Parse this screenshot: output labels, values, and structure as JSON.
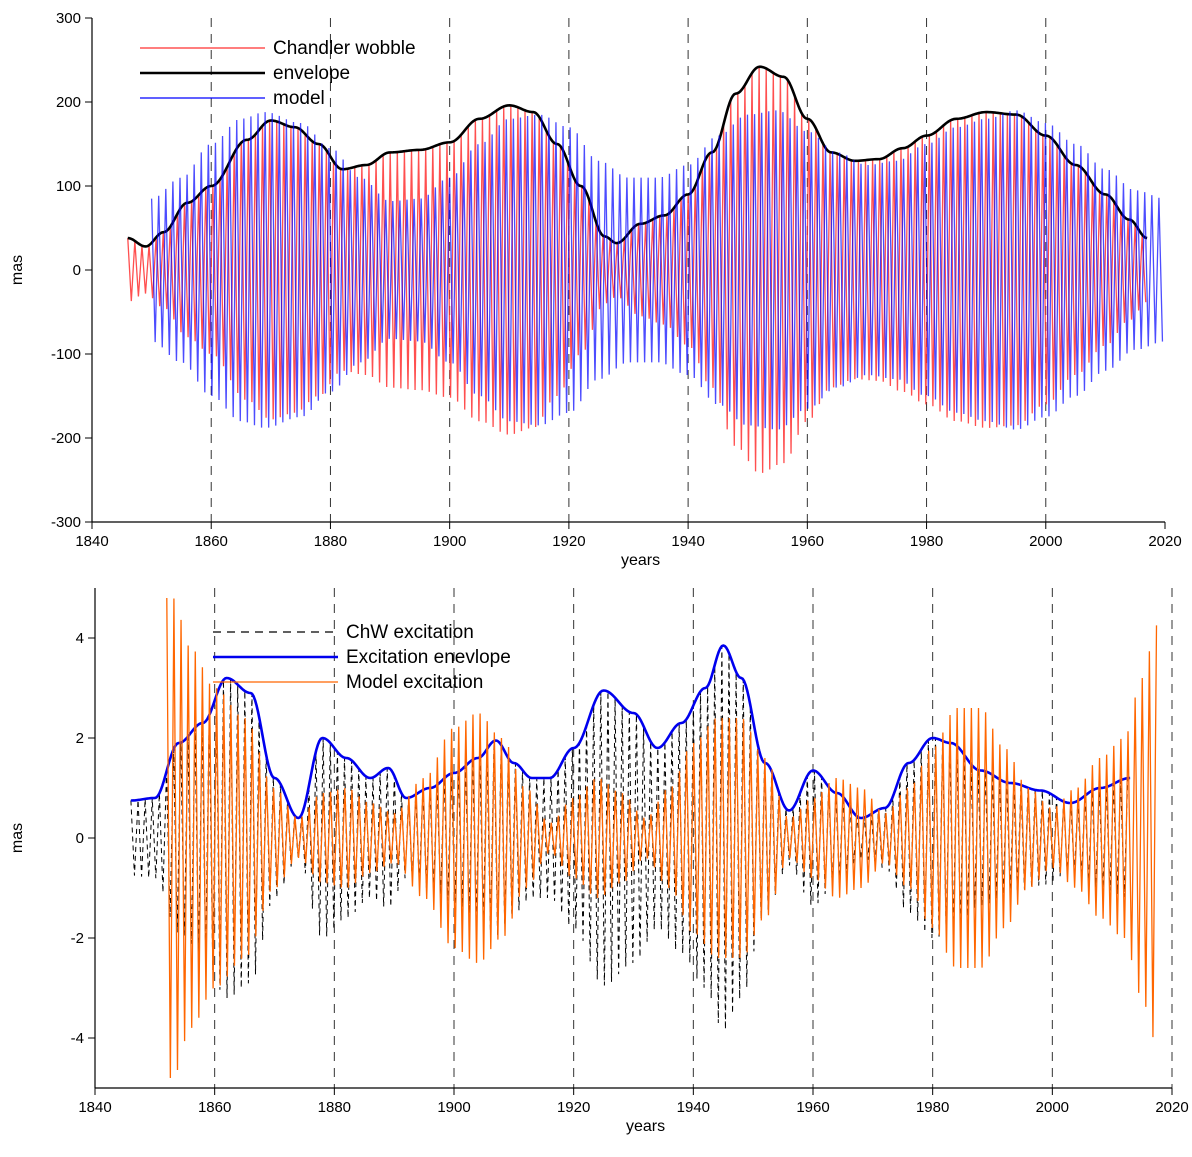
{
  "chart_data": [
    {
      "type": "line",
      "xlabel": "years",
      "ylabel": "mas",
      "xlim": [
        1840,
        2020
      ],
      "ylim": [
        -300,
        300
      ],
      "x_ticks": [
        1840,
        1860,
        1880,
        1900,
        1920,
        1940,
        1960,
        1980,
        2000,
        2020
      ],
      "y_ticks": [
        -300,
        -200,
        -100,
        0,
        100,
        200,
        300
      ],
      "vertical_dashed_gridlines_at": [
        1860,
        1880,
        1900,
        1920,
        1940,
        1960,
        1980,
        2000
      ],
      "legend_position": "top-left",
      "series": [
        {
          "name": "Chandler wobble",
          "color": "#ff3030",
          "style": "oscillation",
          "period_years": 1.19,
          "x_range": [
            1846,
            2017
          ],
          "amplitude": {
            "x": [
              1846,
              1849,
              1852,
              1856,
              1860,
              1866,
              1870,
              1874,
              1878,
              1882,
              1886,
              1890,
              1895,
              1900,
              1905,
              1910,
              1914,
              1918,
              1922,
              1926,
              1928,
              1932,
              1936,
              1940,
              1944,
              1948,
              1952,
              1956,
              1960,
              1964,
              1968,
              1972,
              1976,
              1980,
              1985,
              1990,
              1995,
              2000,
              2005,
              2010,
              2014,
              2017
            ],
            "y": [
              38,
              28,
              45,
              80,
              100,
              155,
              178,
              170,
              150,
              120,
              125,
              140,
              143,
              152,
              180,
              196,
              188,
              150,
              100,
              40,
              32,
              55,
              65,
              90,
              140,
              210,
              242,
              230,
              180,
              140,
              130,
              132,
              145,
              160,
              180,
              188,
              185,
              160,
              125,
              90,
              60,
              38
            ]
          }
        },
        {
          "name": "envelope",
          "color": "#000000",
          "style": "line",
          "x": [
            1846,
            1849,
            1852,
            1856,
            1860,
            1866,
            1870,
            1874,
            1878,
            1882,
            1886,
            1890,
            1895,
            1900,
            1905,
            1910,
            1914,
            1918,
            1922,
            1926,
            1928,
            1932,
            1936,
            1940,
            1944,
            1948,
            1952,
            1956,
            1960,
            1964,
            1968,
            1972,
            1976,
            1980,
            1985,
            1990,
            1995,
            2000,
            2005,
            2010,
            2014,
            2017
          ],
          "y": [
            38,
            28,
            45,
            80,
            100,
            155,
            178,
            170,
            150,
            120,
            125,
            140,
            143,
            152,
            180,
            196,
            188,
            150,
            100,
            40,
            32,
            55,
            65,
            90,
            140,
            210,
            242,
            230,
            180,
            140,
            130,
            132,
            145,
            160,
            180,
            188,
            185,
            160,
            125,
            90,
            60,
            38
          ]
        },
        {
          "name": "model",
          "color": "#0000ff",
          "style": "oscillation",
          "period_years": 1.19,
          "x_range": [
            1850,
            2020
          ],
          "amplitude": {
            "x": [
              1850,
              1855,
              1860,
              1865,
              1869,
              1875,
              1880,
              1885,
              1890,
              1895,
              1900,
              1905,
              1910,
              1915,
              1920,
              1925,
              1930,
              1935,
              1940,
              1945,
              1950,
              1955,
              1960,
              1965,
              1970,
              1975,
              1980,
              1985,
              1990,
              1995,
              2000,
              2005,
              2010,
              2015,
              2020
            ],
            "y": [
              85,
              110,
              150,
              180,
              188,
              175,
              145,
              110,
              82,
              85,
              110,
              150,
              180,
              185,
              170,
              130,
              110,
              110,
              125,
              160,
              185,
              190,
              165,
              140,
              125,
              130,
              150,
              170,
              180,
              190,
              175,
              150,
              120,
              95,
              85
            ]
          }
        }
      ]
    },
    {
      "type": "line",
      "xlabel": "years",
      "ylabel": "mas",
      "xlim": [
        1840,
        2020
      ],
      "ylim": [
        -5,
        5
      ],
      "x_ticks": [
        1840,
        1860,
        1880,
        1900,
        1920,
        1940,
        1960,
        1980,
        2000,
        2020
      ],
      "y_ticks": [
        -4,
        -2,
        0,
        2,
        4
      ],
      "vertical_dashed_gridlines_at": [
        1840,
        1860,
        1880,
        1900,
        1920,
        1940,
        1960,
        1980,
        2000,
        2020
      ],
      "legend_position": "top-left",
      "series": [
        {
          "name": "ChW excitation",
          "color": "#000000",
          "style": "dashed-oscillation",
          "period_years": 1.19,
          "x_range": [
            1846,
            2013
          ],
          "amplitude": {
            "x": [
              1846,
              1850,
              1854,
              1858,
              1862,
              1866,
              1870,
              1874,
              1878,
              1882,
              1886,
              1889,
              1892,
              1896,
              1900,
              1904,
              1907,
              1910,
              1913,
              1916,
              1920,
              1925,
              1930,
              1934,
              1938,
              1942,
              1945,
              1948,
              1952,
              1956,
              1960,
              1964,
              1968,
              1972,
              1976,
              1980,
              1983,
              1988,
              1993,
              1998,
              2003,
              2008,
              2013
            ],
            "y": [
              0.75,
              0.8,
              1.9,
              2.3,
              3.2,
              2.9,
              1.2,
              0.4,
              2.0,
              1.6,
              1.2,
              1.4,
              0.8,
              1.0,
              1.3,
              1.6,
              1.95,
              1.5,
              1.2,
              1.2,
              1.8,
              2.95,
              2.5,
              1.8,
              2.3,
              3.0,
              3.85,
              3.2,
              1.5,
              0.55,
              1.35,
              0.9,
              0.4,
              0.6,
              1.5,
              2.0,
              1.9,
              1.35,
              1.1,
              0.95,
              0.7,
              1.0,
              1.2
            ]
          }
        },
        {
          "name": "Excitation enevlope",
          "color": "#0000ee",
          "style": "line",
          "x": [
            1846,
            1850,
            1854,
            1858,
            1862,
            1866,
            1870,
            1874,
            1878,
            1882,
            1886,
            1889,
            1892,
            1896,
            1900,
            1904,
            1907,
            1910,
            1913,
            1916,
            1920,
            1925,
            1930,
            1934,
            1938,
            1942,
            1945,
            1948,
            1952,
            1956,
            1960,
            1964,
            1968,
            1972,
            1976,
            1980,
            1983,
            1988,
            1993,
            1998,
            2003,
            2008,
            2013
          ],
          "y": [
            0.75,
            0.8,
            1.9,
            2.3,
            3.2,
            2.9,
            1.2,
            0.4,
            2.0,
            1.6,
            1.2,
            1.4,
            0.8,
            1.0,
            1.3,
            1.6,
            1.95,
            1.5,
            1.2,
            1.2,
            1.8,
            2.95,
            2.5,
            1.8,
            2.3,
            3.0,
            3.85,
            3.2,
            1.5,
            0.55,
            1.35,
            0.9,
            0.4,
            0.6,
            1.5,
            2.0,
            1.9,
            1.35,
            1.1,
            0.95,
            0.7,
            1.0,
            1.2
          ]
        },
        {
          "name": "Model excitation",
          "color": "#ff6600",
          "style": "oscillation",
          "period_years": 1.19,
          "x_range": [
            1852,
            2018
          ],
          "amplitude": {
            "x": [
              1852,
              1853,
              1856,
              1860,
              1865,
              1870,
              1874,
              1878,
              1882,
              1886,
              1890,
              1895,
              1900,
              1904,
              1908,
              1912,
              1916,
              1920,
              1924,
              1928,
              1932,
              1936,
              1940,
              1944,
              1948,
              1952,
              1956,
              1960,
              1964,
              1968,
              1972,
              1976,
              1980,
              1984,
              1988,
              1992,
              1996,
              2000,
              2004,
              2008,
              2012,
              2015,
              2017,
              2018
            ],
            "y": [
              4.8,
              4.8,
              3.8,
              3.0,
              2.4,
              1.0,
              0.4,
              0.9,
              1.0,
              0.7,
              0.5,
              1.2,
              2.2,
              2.5,
              2.0,
              1.0,
              0.3,
              0.8,
              1.2,
              0.9,
              0.4,
              1.0,
              1.9,
              2.4,
              2.4,
              1.6,
              0.4,
              0.8,
              1.2,
              1.0,
              0.5,
              1.0,
              1.8,
              2.6,
              2.6,
              1.8,
              1.0,
              0.6,
              1.0,
              1.6,
              2.0,
              3.2,
              4.0,
              4.7
            ]
          }
        }
      ]
    }
  ]
}
